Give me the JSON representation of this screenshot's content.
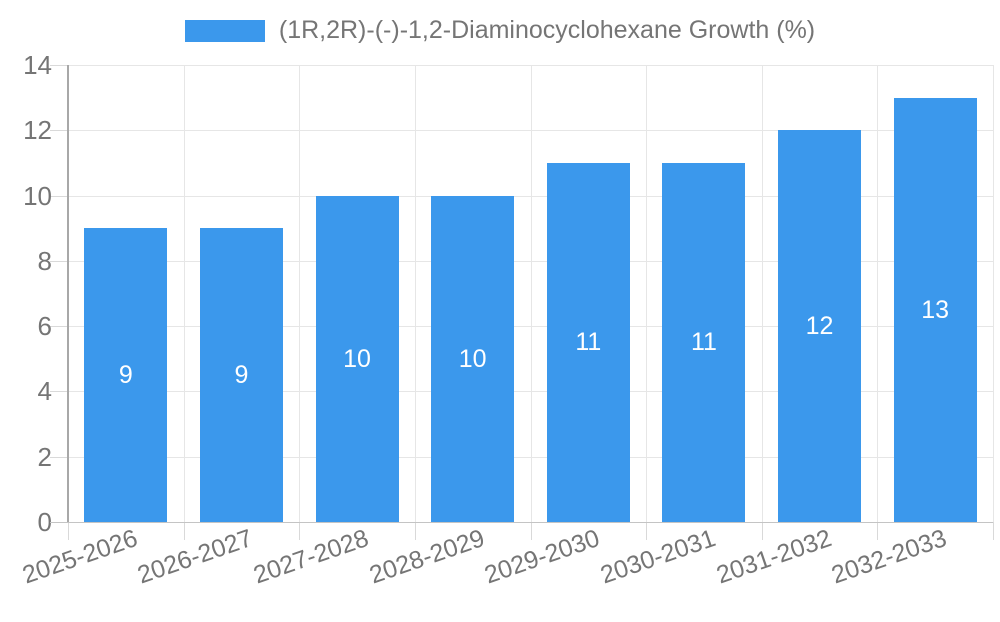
{
  "legend": {
    "label": "(1R,2R)-(-)-1,2-Diaminocyclohexane Growth (%)"
  },
  "chart_data": {
    "type": "bar",
    "title": "(1R,2R)-(-)-1,2-Diaminocyclohexane Growth (%)",
    "categories": [
      "2025-2026",
      "2026-2027",
      "2027-2028",
      "2028-2029",
      "2029-2030",
      "2030-2031",
      "2031-2032",
      "2032-2033"
    ],
    "values": [
      9,
      9,
      10,
      10,
      11,
      11,
      12,
      13
    ],
    "bar_labels": [
      "9",
      "9",
      "10",
      "10",
      "11",
      "11",
      "12",
      "13"
    ],
    "xlabel": "",
    "ylabel": "",
    "ylim": [
      0,
      14
    ],
    "yticks": [
      0,
      2,
      4,
      6,
      8,
      10,
      12,
      14
    ],
    "grid": "on",
    "legend_position": "top-center",
    "colors": {
      "bar": "#3b98ec",
      "bar_label": "#ffffff",
      "axis_text": "#757575",
      "gridline": "#e6e6e6",
      "tick": "#d9d9d9",
      "y_axis_line": "#a8a8a8",
      "x_axis_line": "#c4c4c4",
      "background": "#ffffff"
    }
  }
}
